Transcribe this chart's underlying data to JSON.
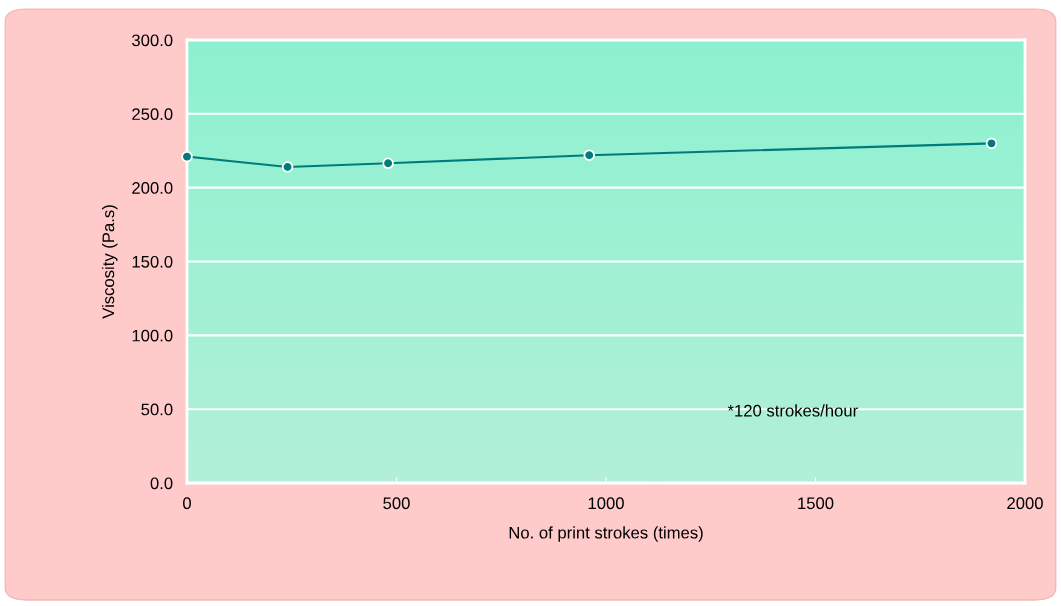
{
  "chart_data": {
    "type": "line",
    "xlabel": "No. of print strokes (times)",
    "ylabel": "Viscosity (Pa.s)",
    "x": [
      0,
      240,
      480,
      960,
      1920
    ],
    "series": [
      {
        "color": "#007b7b",
        "values": [
          221,
          214,
          216.5,
          222,
          230
        ]
      }
    ],
    "xlim": [
      0,
      2000
    ],
    "xticks": [
      0,
      500,
      1000,
      1500,
      2000
    ],
    "ylim": [
      0,
      300
    ],
    "yticks": [
      {
        "value": 0,
        "label": "0.0"
      },
      {
        "value": 50,
        "label": "50.0"
      },
      {
        "value": 100,
        "label": "100.0"
      },
      {
        "value": 150,
        "label": "150.0"
      },
      {
        "value": 200,
        "label": "200.0"
      },
      {
        "value": 250,
        "label": "250.0"
      },
      {
        "value": 300,
        "label": "300.0"
      }
    ],
    "grid": "y",
    "marker": "circle",
    "line_style": "solid",
    "annotations": [
      "*120 strokes/hour"
    ]
  }
}
